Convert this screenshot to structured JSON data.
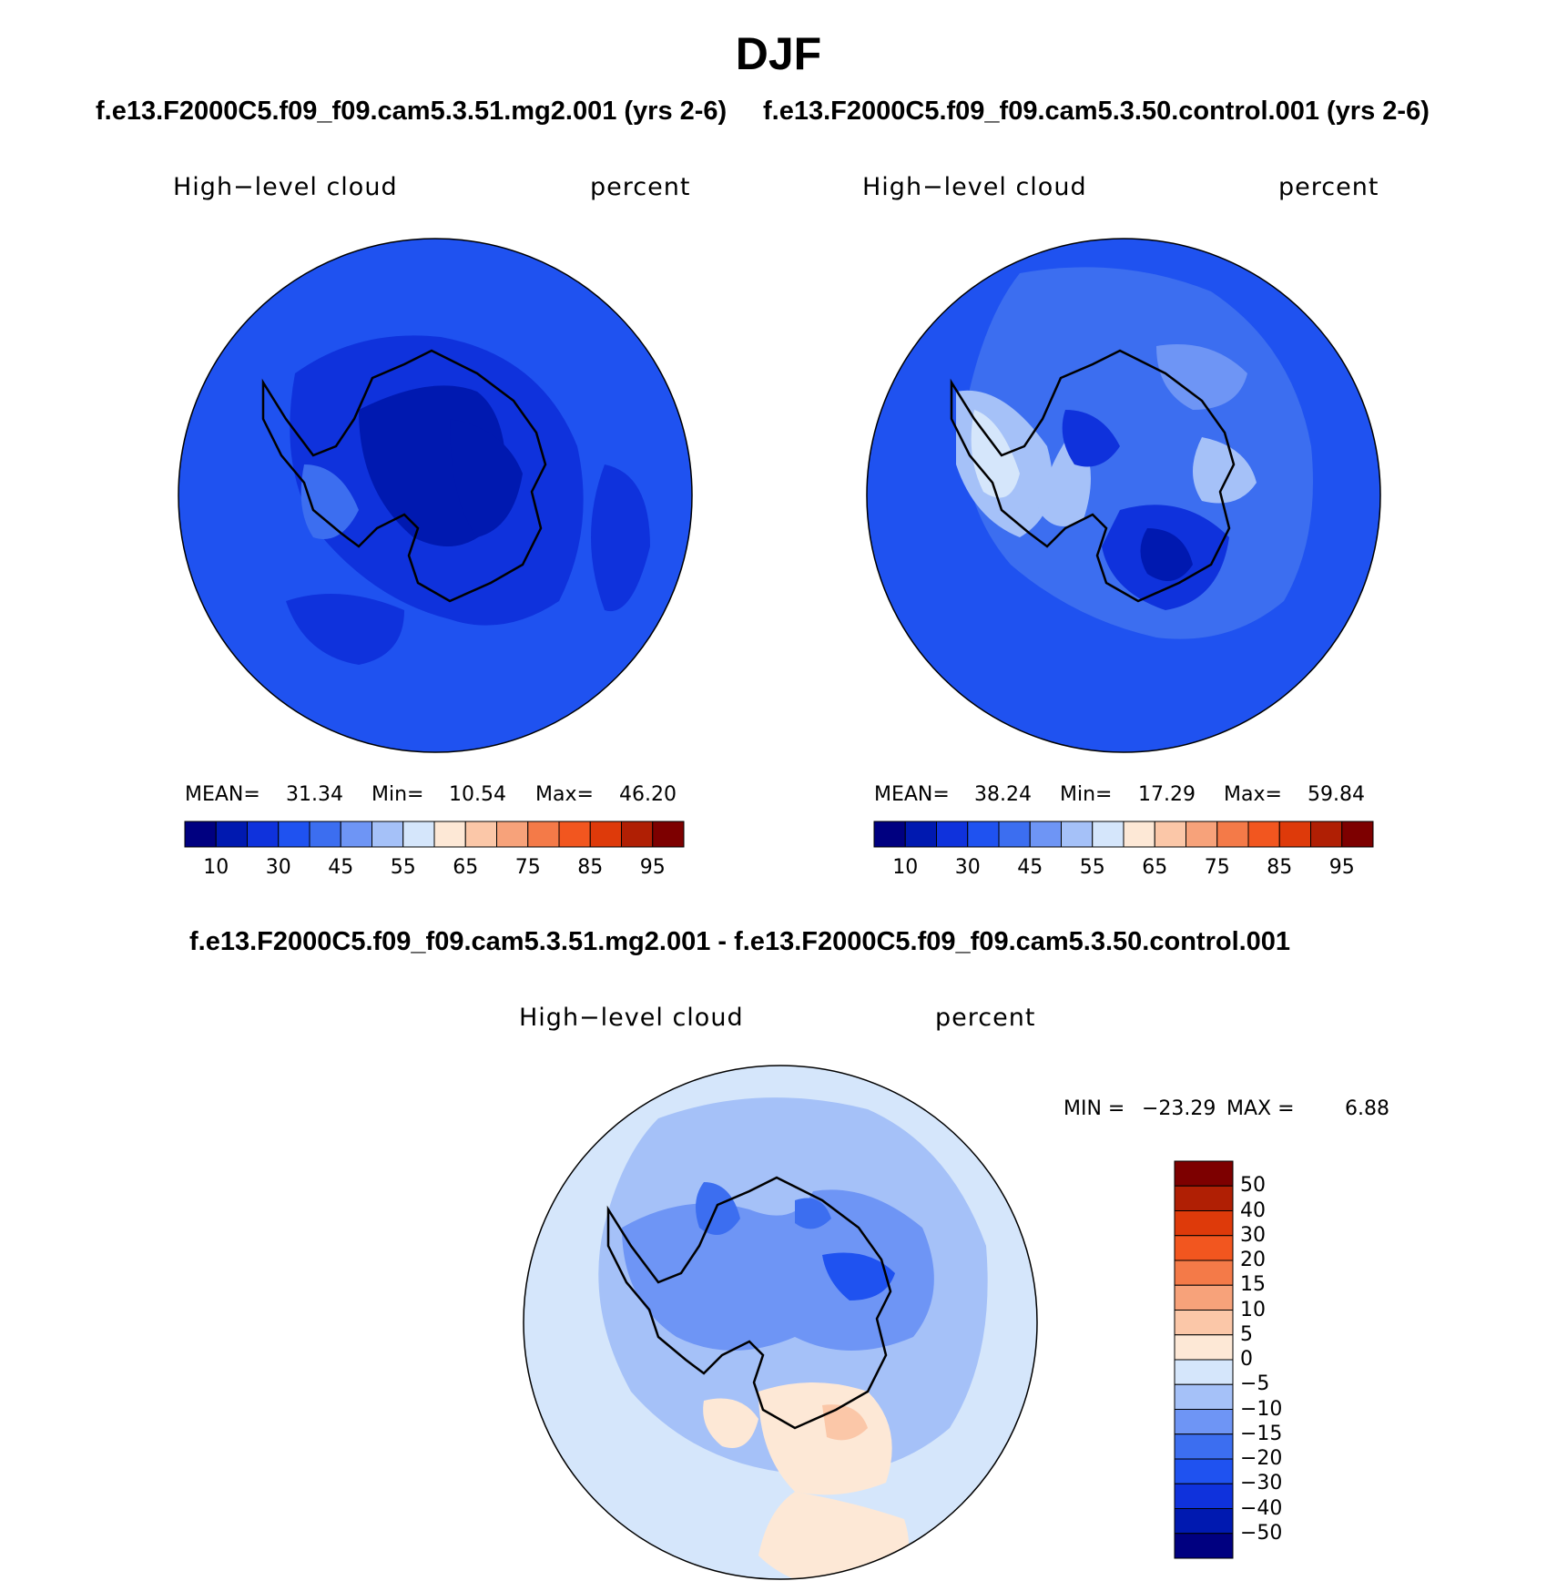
{
  "title": "DJF",
  "panels": [
    {
      "subtitle": "f.e13.F2000C5.f09_f09.cam5.3.51.mg2.001 (yrs 2-6)",
      "left_label": "High−level cloud",
      "right_label": "percent",
      "stats": {
        "mean_label": "MEAN=",
        "mean": "31.34",
        "min_label": "Min=",
        "min": "10.54",
        "max_label": "Max=",
        "max": "46.20"
      }
    },
    {
      "subtitle": "f.e13.F2000C5.f09_f09.cam5.3.50.control.001 (yrs 2-6)",
      "left_label": "High−level cloud",
      "right_label": "percent",
      "stats": {
        "mean_label": "MEAN=",
        "mean": "38.24",
        "min_label": "Min=",
        "min": "17.29",
        "max_label": "Max=",
        "max": "59.84"
      }
    }
  ],
  "abs_colorbar": {
    "colors": [
      "#000080",
      "#0019b0",
      "#0f32dc",
      "#1f52f0",
      "#3c6ef0",
      "#6e95f5",
      "#a5c1f8",
      "#d5e6fb",
      "#fde8d6",
      "#fbc7a8",
      "#f7a27a",
      "#f47a48",
      "#f2561f",
      "#de3a0a",
      "#b01f04",
      "#7d0000"
    ],
    "tick_labels": [
      "10",
      "30",
      "45",
      "55",
      "65",
      "75",
      "85",
      "95"
    ]
  },
  "diff_panel": {
    "subtitle": "f.e13.F2000C5.f09_f09.cam5.3.51.mg2.001 - f.e13.F2000C5.f09_f09.cam5.3.50.control.001",
    "left_label": "High−level cloud",
    "right_label": "percent",
    "min_label": "MIN =",
    "min": "−23.29",
    "max_label": "MAX =",
    "max": "6.88",
    "colorbar": {
      "colors_top_to_bottom": [
        "#7d0000",
        "#b01f04",
        "#de3a0a",
        "#f2561f",
        "#f47a48",
        "#f7a27a",
        "#fbc7a8",
        "#fde8d6",
        "#d5e6fb",
        "#a5c1f8",
        "#6e95f5",
        "#3c6ef0",
        "#1f52f0",
        "#0f32dc",
        "#0019b0",
        "#000080"
      ],
      "tick_labels": [
        "50",
        "40",
        "30",
        "20",
        "15",
        "10",
        "5",
        "0",
        "−5",
        "−10",
        "−15",
        "−20",
        "−30",
        "−40",
        "−50"
      ]
    }
  },
  "map_colors": {
    "ocean_top_left": "#1f52f0",
    "land_dark": "#0019b0",
    "mid": "#0f32dc",
    "light": "#3c6ef0",
    "pale": "#a5c1f8",
    "palest": "#d5e6fb",
    "warm": "#fde8d6",
    "warm2": "#fbc7a8"
  }
}
